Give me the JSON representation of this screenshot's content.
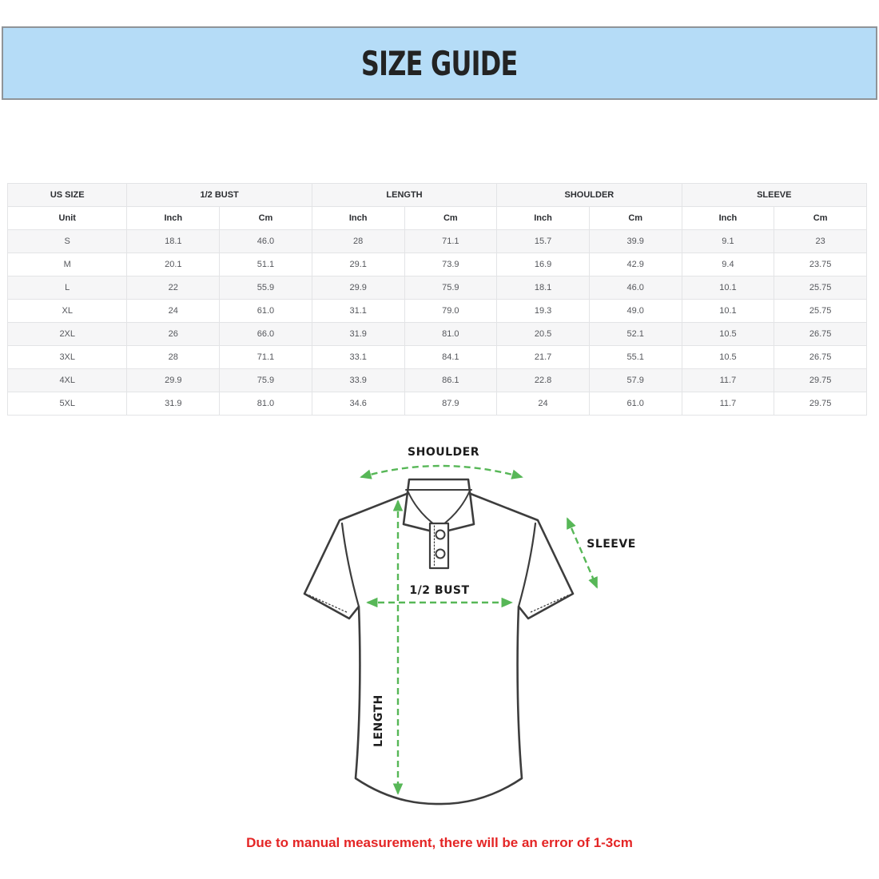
{
  "banner": {
    "title": "SIZE GUIDE",
    "bg_color": "#b5dcf7",
    "border_color": "#8f9498"
  },
  "table": {
    "groups": [
      {
        "label": "US SIZE",
        "span": 1
      },
      {
        "label": "1/2 BUST",
        "span": 2
      },
      {
        "label": "LENGTH",
        "span": 2
      },
      {
        "label": "SHOULDER",
        "span": 2
      },
      {
        "label": "SLEEVE",
        "span": 2
      }
    ],
    "unit_row": [
      "Unit",
      "Inch",
      "Cm",
      "Inch",
      "Cm",
      "Inch",
      "Cm",
      "Inch",
      "Cm"
    ],
    "rows": [
      [
        "S",
        "18.1",
        "46.0",
        "28",
        "71.1",
        "15.7",
        "39.9",
        "9.1",
        "23"
      ],
      [
        "M",
        "20.1",
        "51.1",
        "29.1",
        "73.9",
        "16.9",
        "42.9",
        "9.4",
        "23.75"
      ],
      [
        "L",
        "22",
        "55.9",
        "29.9",
        "75.9",
        "18.1",
        "46.0",
        "10.1",
        "25.75"
      ],
      [
        "XL",
        "24",
        "61.0",
        "31.1",
        "79.0",
        "19.3",
        "49.0",
        "10.1",
        "25.75"
      ],
      [
        "2XL",
        "26",
        "66.0",
        "31.9",
        "81.0",
        "20.5",
        "52.1",
        "10.5",
        "26.75"
      ],
      [
        "3XL",
        "28",
        "71.1",
        "33.1",
        "84.1",
        "21.7",
        "55.1",
        "10.5",
        "26.75"
      ],
      [
        "4XL",
        "29.9",
        "75.9",
        "33.9",
        "86.1",
        "22.8",
        "57.9",
        "11.7",
        "29.75"
      ],
      [
        "5XL",
        "31.9",
        "81.0",
        "34.6",
        "87.9",
        "24",
        "61.0",
        "11.7",
        "29.75"
      ]
    ]
  },
  "diagram": {
    "shoulder_label": "SHOULDER",
    "sleeve_label": "SLEEVE",
    "bust_label": "1/2 BUST",
    "length_label": "LENGTH",
    "arrow_color": "#57b757",
    "outline_color": "#3d3d3d"
  },
  "note": {
    "text": "Due to manual measurement, there will be an error of 1-3cm",
    "color": "#e42525"
  }
}
